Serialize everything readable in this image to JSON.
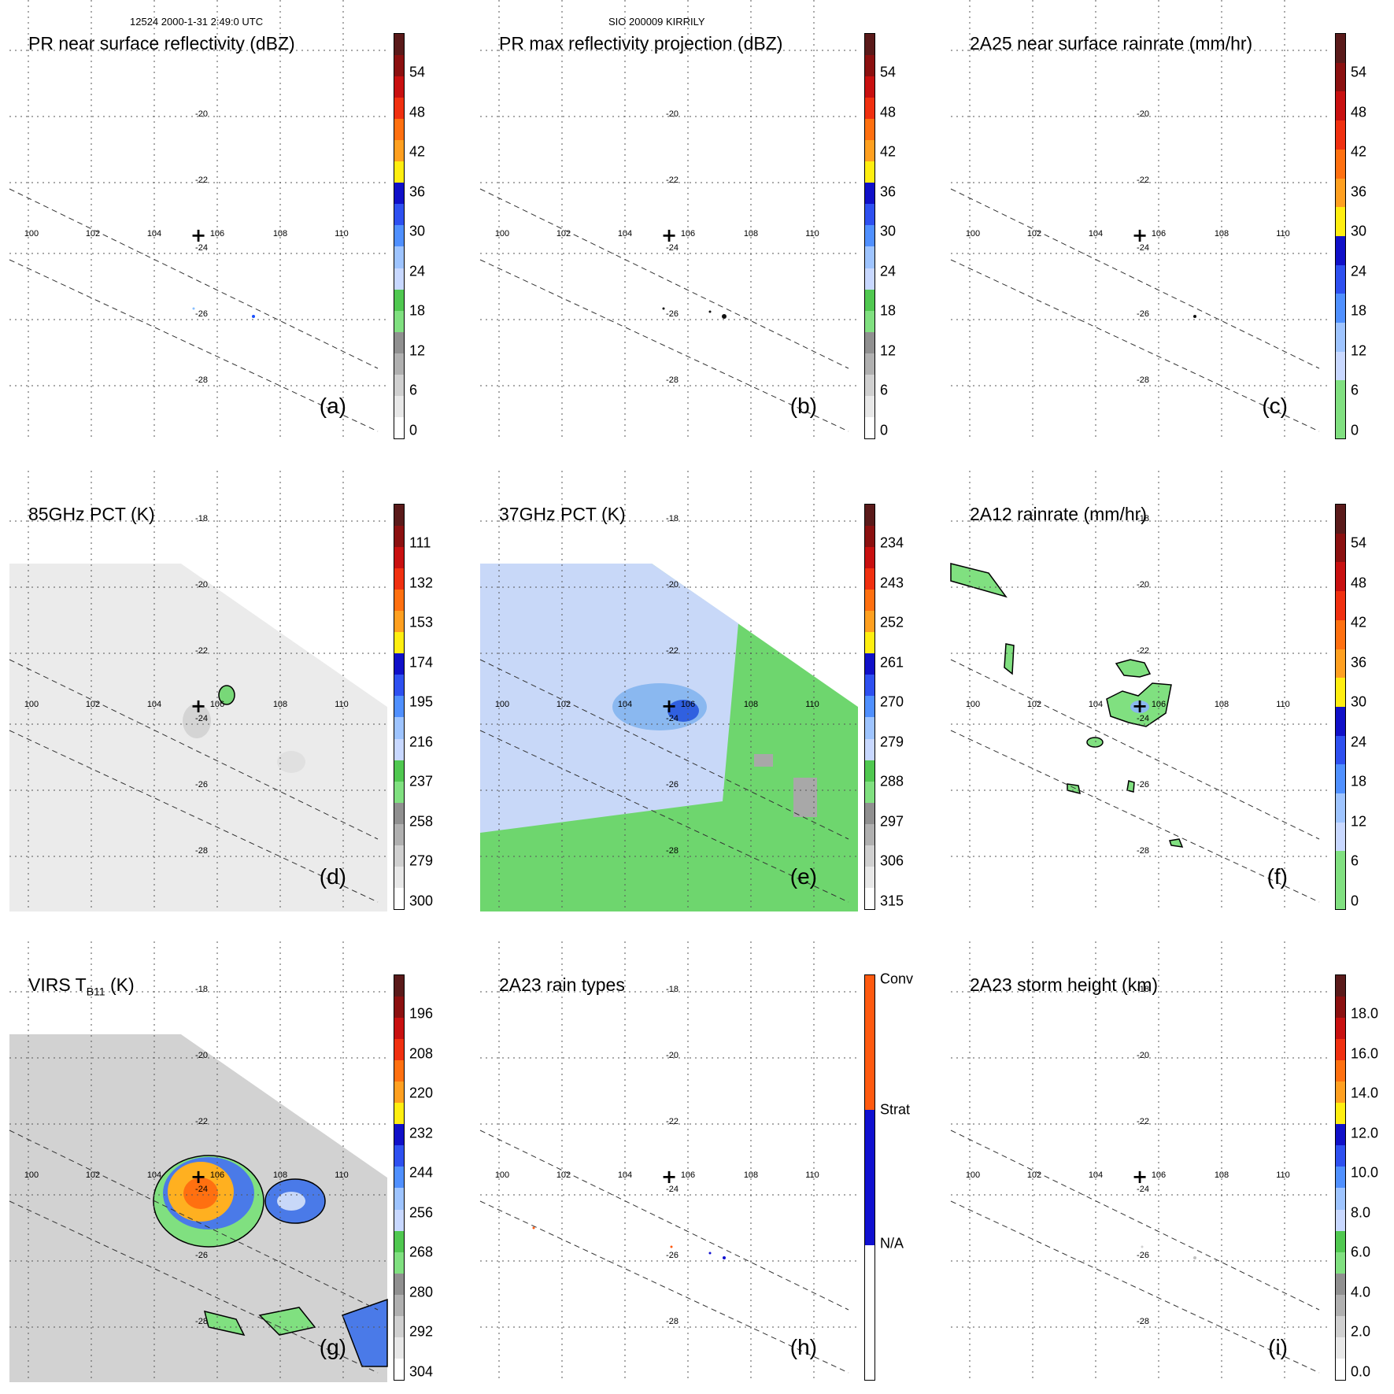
{
  "header": {
    "orbit_time": "12524 2000-1-31 2:49:0 UTC",
    "storm": "SIO 200009 KIRRILY"
  },
  "map": {
    "lon_labels": [
      "100",
      "102",
      "104",
      "106",
      "108",
      "110"
    ],
    "lat_labels": [
      "-18",
      "-20",
      "-22",
      "-24",
      "-26",
      "-28"
    ]
  },
  "panels": [
    {
      "id": "a",
      "title": "PR near surface reflectivity (dBZ)",
      "label": "(a)",
      "ticks": [
        "54",
        "48",
        "42",
        "36",
        "30",
        "24",
        "18",
        "12",
        "6",
        "0"
      ],
      "palette": [
        "#5a1a1a",
        "#8b1010",
        "#c81010",
        "#f03010",
        "#ff7010",
        "#ffa020",
        "#ffee10",
        "#1010c8",
        "#2e50f0",
        "#5090ff",
        "#9ec4ff",
        "#c8d8ff",
        "#50c850",
        "#80e080",
        "#909090",
        "#b0b0b0",
        "#d0d0d0",
        "#e8e8e8",
        "#ffffff"
      ]
    },
    {
      "id": "b",
      "title": "PR max reflectivity projection (dBZ)",
      "label": "(b)",
      "ticks": [
        "54",
        "48",
        "42",
        "36",
        "30",
        "24",
        "18",
        "12",
        "6",
        "0"
      ],
      "palette": [
        "#5a1a1a",
        "#8b1010",
        "#c81010",
        "#f03010",
        "#ff7010",
        "#ffa020",
        "#ffee10",
        "#1010c8",
        "#2e50f0",
        "#5090ff",
        "#9ec4ff",
        "#c8d8ff",
        "#50c850",
        "#80e080",
        "#909090",
        "#b0b0b0",
        "#d0d0d0",
        "#e8e8e8",
        "#ffffff"
      ]
    },
    {
      "id": "c",
      "title": "2A25 near surface rainrate (mm/hr)",
      "label": "(c)",
      "ticks": [
        "54",
        "48",
        "42",
        "36",
        "30",
        "24",
        "18",
        "12",
        "6",
        "0"
      ],
      "palette": [
        "#5a1a1a",
        "#8b1010",
        "#c81010",
        "#f03010",
        "#ff7010",
        "#ffa020",
        "#ffee10",
        "#1010c8",
        "#2e50f0",
        "#5090ff",
        "#9ec4ff",
        "#c8d8ff",
        "#80e080",
        "#80e080"
      ]
    },
    {
      "id": "d",
      "title": "85GHz PCT (K)",
      "label": "(d)",
      "ticks": [
        "111",
        "132",
        "153",
        "174",
        "195",
        "216",
        "237",
        "258",
        "279",
        "300"
      ],
      "palette": [
        "#5a1a1a",
        "#8b1010",
        "#c81010",
        "#f03010",
        "#ff7010",
        "#ffa020",
        "#ffee10",
        "#1010c8",
        "#2e50f0",
        "#5090ff",
        "#9ec4ff",
        "#c8d8ff",
        "#50c850",
        "#80e080",
        "#909090",
        "#b0b0b0",
        "#d0d0d0",
        "#e8e8e8",
        "#ffffff"
      ]
    },
    {
      "id": "e",
      "title": "37GHz PCT (K)",
      "label": "(e)",
      "ticks": [
        "234",
        "243",
        "252",
        "261",
        "270",
        "279",
        "288",
        "297",
        "306",
        "315"
      ],
      "palette": [
        "#5a1a1a",
        "#8b1010",
        "#c81010",
        "#f03010",
        "#ff7010",
        "#ffa020",
        "#ffee10",
        "#1010c8",
        "#2e50f0",
        "#5090ff",
        "#9ec4ff",
        "#c8d8ff",
        "#50c850",
        "#80e080",
        "#909090",
        "#b0b0b0",
        "#d0d0d0",
        "#e8e8e8",
        "#ffffff"
      ]
    },
    {
      "id": "f",
      "title": "2A12 rainrate (mm/hr)",
      "label": "(f)",
      "ticks": [
        "54",
        "48",
        "42",
        "36",
        "30",
        "24",
        "18",
        "12",
        "6",
        "0"
      ],
      "palette": [
        "#5a1a1a",
        "#8b1010",
        "#c81010",
        "#f03010",
        "#ff7010",
        "#ffa020",
        "#ffee10",
        "#1010c8",
        "#2e50f0",
        "#5090ff",
        "#9ec4ff",
        "#c8d8ff",
        "#80e080",
        "#80e080"
      ]
    },
    {
      "id": "g",
      "title_main": "VIRS T",
      "title_sub": "B11",
      "title_unit": " (K)",
      "label": "(g)",
      "ticks": [
        "196",
        "208",
        "220",
        "232",
        "244",
        "256",
        "268",
        "280",
        "292",
        "304"
      ],
      "palette": [
        "#5a1a1a",
        "#8b1010",
        "#c81010",
        "#f03010",
        "#ff7010",
        "#ffa020",
        "#ffee10",
        "#1010c8",
        "#2e50f0",
        "#5090ff",
        "#9ec4ff",
        "#c8d8ff",
        "#50c850",
        "#80e080",
        "#909090",
        "#b0b0b0",
        "#d0d0d0",
        "#e8e8e8",
        "#ffffff"
      ]
    },
    {
      "id": "h",
      "title": "2A23 rain types",
      "label": "(h)",
      "ticks": [
        "Conv",
        "Strat",
        "N/A"
      ],
      "palette": [
        "#ff5a10",
        "#1010d0",
        "#ffffff"
      ]
    },
    {
      "id": "i",
      "title": "2A23 storm height (km)",
      "label": "(i)",
      "ticks": [
        "18.0",
        "16.0",
        "14.0",
        "12.0",
        "10.0",
        "8.0",
        "6.0",
        "4.0",
        "2.0",
        "0.0"
      ],
      "palette": [
        "#5a1a1a",
        "#8b1010",
        "#c81010",
        "#f03010",
        "#ff7010",
        "#ffa020",
        "#ffee10",
        "#1010c8",
        "#2e50f0",
        "#5090ff",
        "#9ec4ff",
        "#c8d8ff",
        "#50c850",
        "#80e080",
        "#909090",
        "#b0b0b0",
        "#d0d0d0",
        "#e8e8e8",
        "#ffffff"
      ]
    }
  ]
}
